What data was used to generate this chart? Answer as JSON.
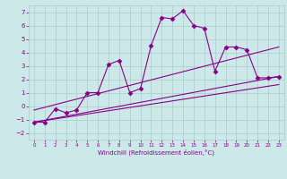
{
  "xlabel": "Windchill (Refroidissement éolien,°C)",
  "x": [
    0,
    1,
    2,
    3,
    4,
    5,
    6,
    7,
    8,
    9,
    10,
    11,
    12,
    13,
    14,
    15,
    16,
    17,
    18,
    19,
    20,
    21,
    22,
    23
  ],
  "line1": [
    -1.2,
    -1.2,
    -0.2,
    -0.5,
    -0.3,
    1.0,
    1.0,
    3.1,
    3.4,
    1.0,
    1.3,
    4.5,
    6.6,
    6.5,
    7.1,
    6.0,
    5.8,
    2.6,
    4.4,
    4.4,
    4.2,
    2.1,
    2.1,
    2.2
  ],
  "line2_x": [
    0,
    23
  ],
  "line2_y": [
    -1.2,
    2.2
  ],
  "line3_x": [
    0,
    23
  ],
  "line3_y": [
    -0.3,
    4.4
  ],
  "line4_x": [
    0,
    23
  ],
  "line4_y": [
    -1.2,
    1.6
  ],
  "color": "#880088",
  "bg_color": "#cce8e8",
  "grid_color": "#aacccc",
  "ylim": [
    -2.5,
    7.5
  ],
  "xlim": [
    -0.5,
    23.5
  ],
  "yticks": [
    -2,
    -1,
    0,
    1,
    2,
    3,
    4,
    5,
    6,
    7
  ],
  "xticks": [
    0,
    1,
    2,
    3,
    4,
    5,
    6,
    7,
    8,
    9,
    10,
    11,
    12,
    13,
    14,
    15,
    16,
    17,
    18,
    19,
    20,
    21,
    22,
    23
  ],
  "marker": "D",
  "markersize": 2.5,
  "linewidth": 0.8
}
